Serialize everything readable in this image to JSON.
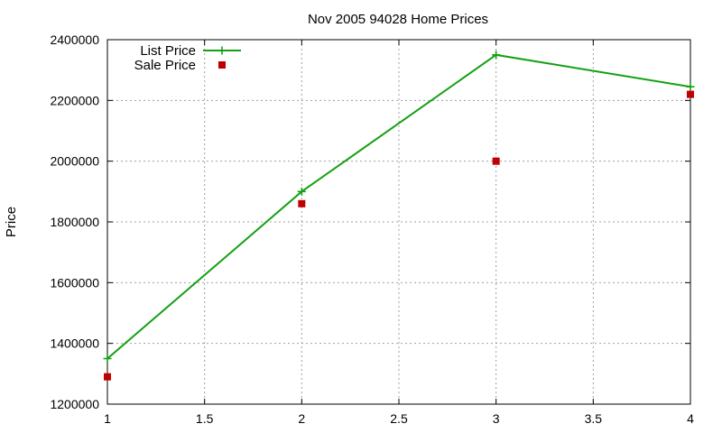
{
  "chart_data": {
    "type": "line",
    "title": "Nov 2005 94028 Home Prices",
    "xlabel": "",
    "ylabel": "Price",
    "xlim": [
      1,
      4
    ],
    "ylim": [
      1200000,
      2400000
    ],
    "xticks": [
      "1",
      "1.5",
      "2",
      "2.5",
      "3",
      "3.5",
      "4"
    ],
    "xtick_values": [
      1,
      1.5,
      2,
      2.5,
      3,
      3.5,
      4
    ],
    "yticks": [
      "1200000",
      "1400000",
      "1600000",
      "1800000",
      "2000000",
      "2200000",
      "2400000"
    ],
    "ytick_values": [
      1200000,
      1400000,
      1600000,
      1800000,
      2000000,
      2200000,
      2400000
    ],
    "grid": true,
    "legend_position": "top-left",
    "series": [
      {
        "name": "List Price",
        "style": "linespoints",
        "marker": "plus",
        "color": "#13a013",
        "x": [
          1,
          2,
          3,
          4
        ],
        "y": [
          1350000,
          1900000,
          2350000,
          2245000
        ]
      },
      {
        "name": "Sale Price",
        "style": "points",
        "marker": "square",
        "color": "#c00000",
        "x": [
          1,
          2,
          3,
          4
        ],
        "y": [
          1290000,
          1860000,
          2000000,
          2220000
        ]
      }
    ]
  }
}
